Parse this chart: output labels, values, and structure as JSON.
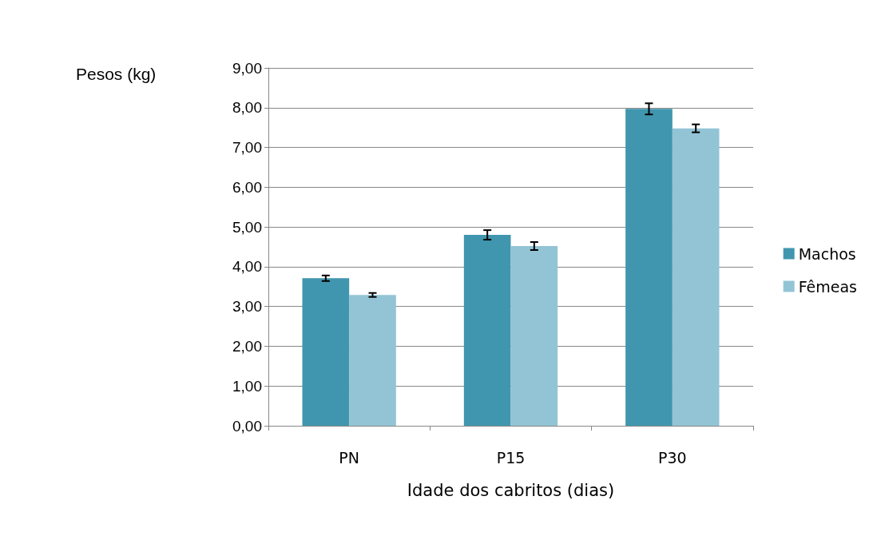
{
  "chart_data": {
    "type": "bar",
    "ylabel": "Pesos (kg)",
    "xlabel": "Idade dos cabritos (dias)",
    "categories": [
      "PN",
      "P15",
      "P30"
    ],
    "series": [
      {
        "name": "Machos",
        "color": "#4096ae",
        "values": [
          3.71,
          4.8,
          7.97
        ],
        "errors": [
          0.07,
          0.12,
          0.14
        ]
      },
      {
        "name": "Fêmeas",
        "color": "#93c4d5",
        "values": [
          3.29,
          4.52,
          7.48
        ],
        "errors": [
          0.05,
          0.1,
          0.1
        ]
      }
    ],
    "ylim": [
      0,
      9
    ],
    "yticks": [
      {
        "value": 0,
        "label": "0,00"
      },
      {
        "value": 1,
        "label": "1,00"
      },
      {
        "value": 2,
        "label": "2,00"
      },
      {
        "value": 3,
        "label": "3,00"
      },
      {
        "value": 4,
        "label": "4,00"
      },
      {
        "value": 5,
        "label": "5,00"
      },
      {
        "value": 6,
        "label": "6,00"
      },
      {
        "value": 7,
        "label": "7,00"
      },
      {
        "value": 8,
        "label": "8,00"
      },
      {
        "value": 9,
        "label": "9,00"
      }
    ],
    "grid": "y",
    "legend": "right"
  }
}
